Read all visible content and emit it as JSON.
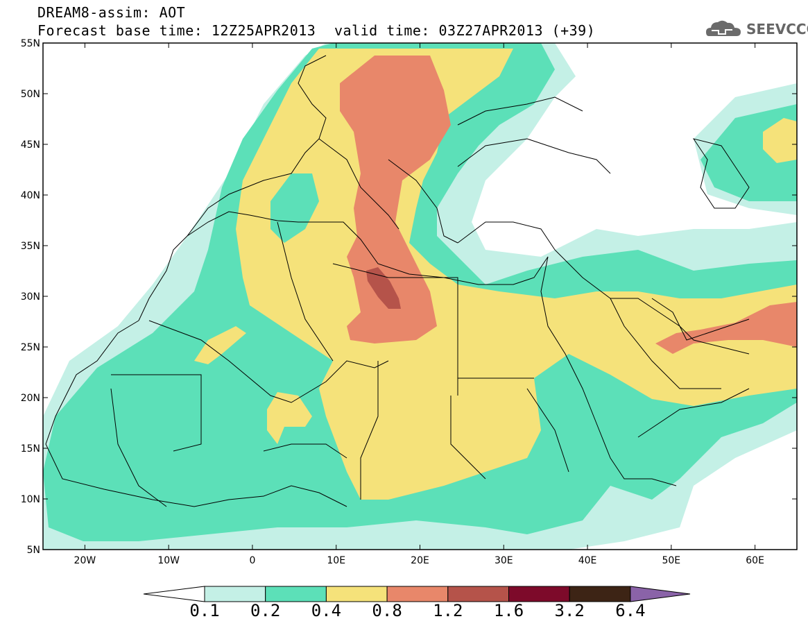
{
  "header": {
    "model_line": "DREAM8-assim: AOT",
    "base_line": "Forecast base time: 12Z25APR2013",
    "valid_line": "valid time: 03Z27APR2013 (+39)",
    "logo_text": "SEEVCCC",
    "logo_icon": "cloud-logo-icon"
  },
  "map": {
    "lon_range": [
      -25,
      65
    ],
    "lat_range": [
      5,
      55
    ],
    "lat_labels": [
      "55N",
      "50N",
      "45N",
      "40N",
      "35N",
      "30N",
      "25N",
      "20N",
      "15N",
      "10N",
      "5N"
    ],
    "lon_labels": [
      "20W",
      "10W",
      "0",
      "10E",
      "20E",
      "30E",
      "40E",
      "50E",
      "60E"
    ],
    "field": "AOT"
  },
  "colorbar": {
    "labels": [
      "0.1",
      "0.2",
      "0.4",
      "0.8",
      "1.2",
      "1.6",
      "3.2",
      "6.4"
    ],
    "colors": [
      "#c4f0e6",
      "#5ce0b8",
      "#f5e27a",
      "#e8876a",
      "#b5534a",
      "#7d0a2a",
      "#3d2415",
      "#8a63a8"
    ],
    "under_color": "#ffffff"
  },
  "colors": {
    "c01": "#c4f0e6",
    "c02": "#5ce0b8",
    "c04": "#f5e27a",
    "c08": "#e8876a",
    "c12": "#b5534a",
    "coast": "#000000"
  }
}
